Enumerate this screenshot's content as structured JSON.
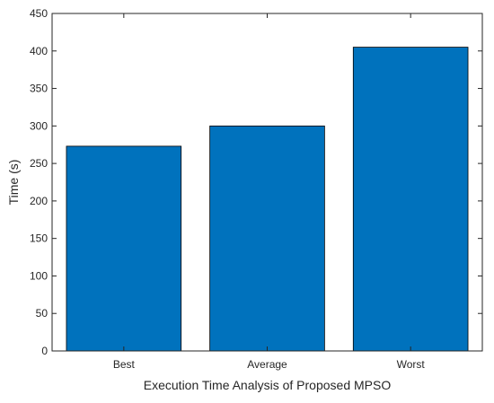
{
  "chart_data": {
    "type": "bar",
    "title": "",
    "xlabel": "Execution Time Analysis of Proposed MPSO",
    "ylabel": "Time (s)",
    "categories": [
      "Best",
      "Average",
      "Worst"
    ],
    "values": [
      273,
      300,
      405
    ],
    "ylim": [
      0,
      450
    ],
    "yticks": [
      "0",
      "50",
      "100",
      "150",
      "200",
      "250",
      "300",
      "350",
      "400",
      "450"
    ],
    "grid": false,
    "legend": "none",
    "bar_color": "#0072BD",
    "axis_color": "#262626"
  }
}
